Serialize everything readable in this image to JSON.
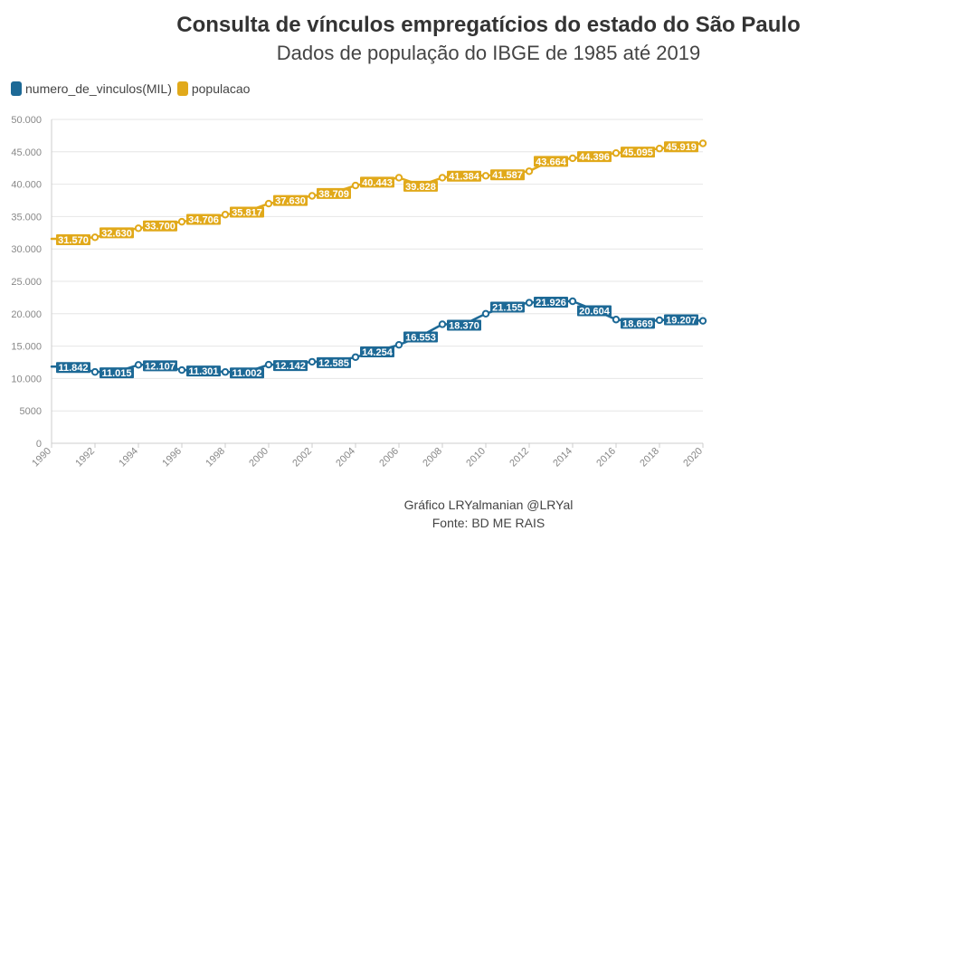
{
  "colors": {
    "vinculos": "#1d6996",
    "populacao": "#e1a91a",
    "grid": "#e6e6e6",
    "axis": "#cccccc"
  },
  "footer": {
    "line1": "Gráfico LRYalmanian @LRYal",
    "line2": "Fonte: BD ME RAIS"
  },
  "chart_data": {
    "type": "line",
    "title": "Consulta de vínculos empregatícios do estado do São Paulo",
    "subtitle": "Dados de população do IBGE de 1985 até 2019",
    "xlim": [
      1990,
      2020
    ],
    "ylim": [
      0,
      50000
    ],
    "x_ticks": [
      "1990",
      "1992",
      "1994",
      "1996",
      "1998",
      "2000",
      "2002",
      "2004",
      "2006",
      "2008",
      "2010",
      "2012",
      "2014",
      "2016",
      "2018",
      "2020"
    ],
    "y_ticks": [
      {
        "value": 0,
        "label": "0"
      },
      {
        "value": 5000,
        "label": "5000"
      },
      {
        "value": 10000,
        "label": "10.000"
      },
      {
        "value": 15000,
        "label": "15.000"
      },
      {
        "value": 20000,
        "label": "20.000"
      },
      {
        "value": 25000,
        "label": "25.000"
      },
      {
        "value": 30000,
        "label": "30.000"
      },
      {
        "value": 35000,
        "label": "35.000"
      },
      {
        "value": 40000,
        "label": "40.000"
      },
      {
        "value": 45000,
        "label": "45.000"
      },
      {
        "value": 50000,
        "label": "50.000"
      }
    ],
    "grid": true,
    "legend_position": "top-left",
    "series": [
      {
        "name": "numero_de_vinculos(MIL)",
        "color": "#1d6996",
        "x": [
          1990,
          1991,
          1992,
          1993,
          1994,
          1995,
          1996,
          1997,
          1998,
          1999,
          2000,
          2001,
          2002,
          2003,
          2004,
          2005,
          2006,
          2007,
          2008,
          2009,
          2010,
          2011,
          2012,
          2013,
          2014,
          2015,
          2016,
          2017,
          2018,
          2019,
          2020
        ],
        "y": [
          11842,
          11842,
          11015,
          11015,
          12107,
          12107,
          11301,
          11301,
          11002,
          11002,
          12142,
          12142,
          12585,
          12585,
          13300,
          14254,
          15200,
          16553,
          18370,
          18370,
          20000,
          21155,
          21700,
          21926,
          21926,
          20604,
          19100,
          18669,
          19000,
          19207,
          18900
        ],
        "markers": [
          1992,
          1994,
          1996,
          1998,
          2000,
          2002,
          2004,
          2006,
          2008,
          2010,
          2012,
          2014,
          2016,
          2018,
          2020
        ],
        "labels": [
          {
            "x": 1991,
            "text": "11.842"
          },
          {
            "x": 1993,
            "text": "11.015"
          },
          {
            "x": 1995,
            "text": "12.107"
          },
          {
            "x": 1997,
            "text": "11.301"
          },
          {
            "x": 1999,
            "text": "11.002"
          },
          {
            "x": 2001,
            "text": "12.142"
          },
          {
            "x": 2003,
            "text": "12.585"
          },
          {
            "x": 2005,
            "text": "14.254"
          },
          {
            "x": 2007,
            "text": "16.553"
          },
          {
            "x": 2009,
            "text": "18.370"
          },
          {
            "x": 2011,
            "text": "21.155"
          },
          {
            "x": 2013,
            "text": "21.926"
          },
          {
            "x": 2015,
            "text": "20.604"
          },
          {
            "x": 2017,
            "text": "18.669"
          },
          {
            "x": 2019,
            "text": "19.207"
          }
        ]
      },
      {
        "name": "populacao",
        "color": "#e1a91a",
        "x": [
          1990,
          1991,
          1992,
          1993,
          1994,
          1995,
          1996,
          1997,
          1998,
          1999,
          2000,
          2001,
          2002,
          2003,
          2004,
          2005,
          2006,
          2007,
          2008,
          2009,
          2010,
          2011,
          2012,
          2013,
          2014,
          2015,
          2016,
          2017,
          2018,
          2019,
          2020
        ],
        "y": [
          31570,
          31570,
          31800,
          32630,
          33200,
          33700,
          34200,
          34706,
          35300,
          35817,
          37000,
          37630,
          38200,
          38709,
          39800,
          40443,
          41000,
          39828,
          41000,
          41384,
          41300,
          41587,
          42000,
          43664,
          44000,
          44396,
          44800,
          45095,
          45500,
          45919,
          46300
        ],
        "markers": [
          1992,
          1994,
          1996,
          1998,
          2000,
          2002,
          2004,
          2006,
          2008,
          2010,
          2012,
          2014,
          2016,
          2018,
          2020
        ],
        "labels": [
          {
            "x": 1991,
            "text": "31.570"
          },
          {
            "x": 1993,
            "text": "32.630"
          },
          {
            "x": 1995,
            "text": "33.700"
          },
          {
            "x": 1997,
            "text": "34.706"
          },
          {
            "x": 1999,
            "text": "35.817"
          },
          {
            "x": 2001,
            "text": "37.630"
          },
          {
            "x": 2003,
            "text": "38.709"
          },
          {
            "x": 2005,
            "text": "40.443"
          },
          {
            "x": 2007,
            "text": "39.828"
          },
          {
            "x": 2009,
            "text": "41.384"
          },
          {
            "x": 2011,
            "text": "41.587"
          },
          {
            "x": 2013,
            "text": "43.664"
          },
          {
            "x": 2015,
            "text": "44.396"
          },
          {
            "x": 2017,
            "text": "45.095"
          },
          {
            "x": 2019,
            "text": "45.919"
          }
        ]
      }
    ]
  }
}
